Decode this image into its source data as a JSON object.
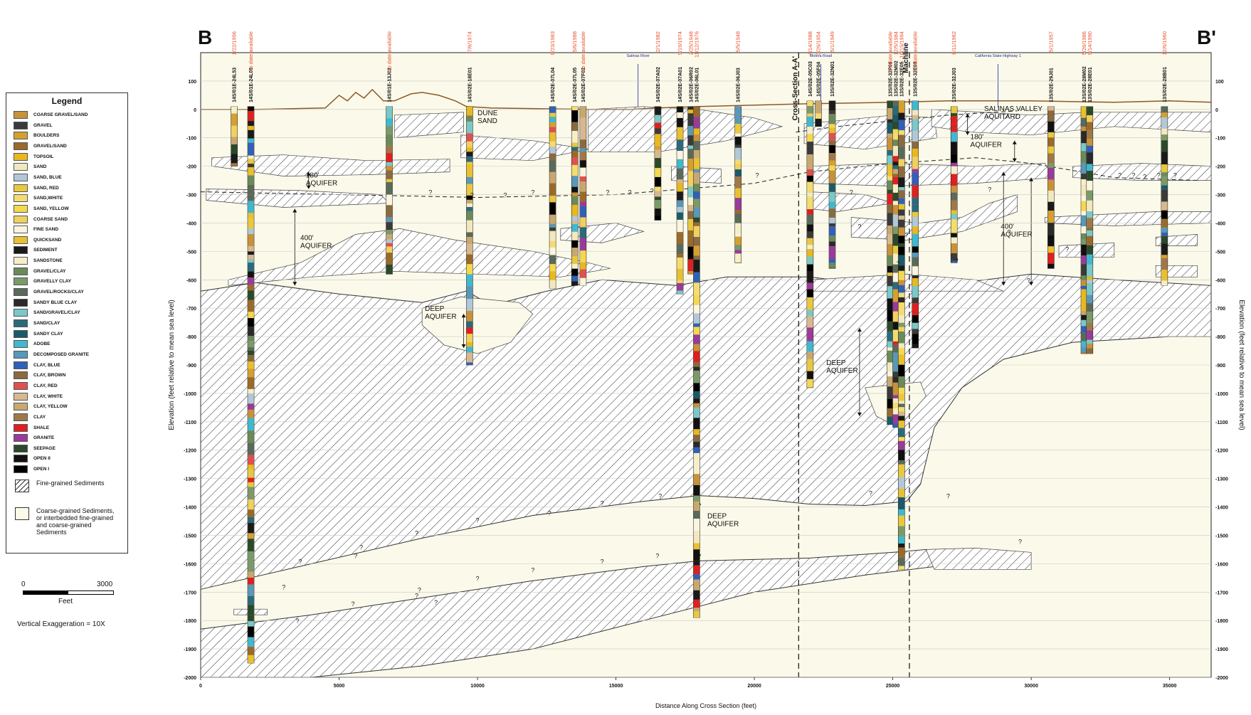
{
  "section": {
    "left_label": "B",
    "right_label": "B'"
  },
  "axes": {
    "y_label": "Elevation (feet relative to mean sea level)",
    "y_label_right": "Elevation (feet relative to mean sea level)",
    "x_label": "Distance Along Cross Section (feet)",
    "y_ticks": [
      "100",
      "0",
      "-100",
      "-200",
      "-300",
      "-400",
      "-500",
      "-600",
      "-700",
      "-800",
      "-900",
      "-1000",
      "-1100",
      "-1200",
      "-1300",
      "-1400",
      "-1500",
      "-1600",
      "-1700",
      "-1800",
      "-1900",
      "-2000"
    ],
    "y_values": [
      100,
      0,
      -100,
      -200,
      -300,
      -400,
      -500,
      -600,
      -700,
      -800,
      -900,
      -1000,
      -1100,
      -1200,
      -1300,
      -1400,
      -1500,
      -1600,
      -1700,
      -1800,
      -1900,
      -2000
    ],
    "x_ticks": [
      "0",
      "5000",
      "10000",
      "15000",
      "20000",
      "25000",
      "30000",
      "35000"
    ],
    "x_values": [
      0,
      5000,
      10000,
      15000,
      20000,
      25000,
      30000,
      35000
    ],
    "x_max": 36500,
    "y_min": -2000,
    "y_max": 200
  },
  "wells": [
    {
      "id": "14S/01E-24L53",
      "date": "1/22/1996",
      "x": 1200,
      "bottom": -200
    },
    {
      "id": "14S/01E-24L05",
      "date": "no date available",
      "x": 1800,
      "bottom": -1950
    },
    {
      "id": "14S/01E-13J02",
      "date": "no date available",
      "x": 6800,
      "bottom": -580
    },
    {
      "id": "14S/02E-18E01",
      "date": "7/6/1974",
      "x": 9700,
      "bottom": -900
    },
    {
      "id": "14S/02E-07L04",
      "date": "8/23/1983",
      "x": 12700,
      "bottom": -630
    },
    {
      "id": "14S/02E-07L05",
      "date": "5/6/1988",
      "x": 13500,
      "bottom": -620
    },
    {
      "id": "14S/02E-07F02",
      "date": "no date available",
      "x": 13800,
      "bottom": -620
    },
    {
      "id": "14S/02E-07A02",
      "date": "2/1/1982",
      "x": 16500,
      "bottom": -390
    },
    {
      "id": "14S/02E-07A01",
      "date": "9/19/1974",
      "x": 17300,
      "bottom": -650
    },
    {
      "id": "14S/02E-06R02",
      "date": "2/25/1948",
      "x": 17700,
      "bottom": -580
    },
    {
      "id": "14S/02E-06L01",
      "date": "11/12/1976",
      "x": 17900,
      "bottom": -1790
    },
    {
      "id": "14S/02E-06J03",
      "date": "5/5/1948",
      "x": 19400,
      "bottom": -540
    },
    {
      "id": "14S/02E-05C03",
      "date": "4/14/1988",
      "x": 22000,
      "bottom": -980
    },
    {
      "id": "14S/02E-05F04",
      "date": "3/26/1954",
      "x": 22300,
      "bottom": -60
    },
    {
      "id": "13S/02E-32N01",
      "date": "5/1/1949",
      "x": 22800,
      "bottom": -560
    },
    {
      "id": "13S/02E-32P01",
      "date": "no date available",
      "x": 24900,
      "bottom": -1110
    },
    {
      "id": "13S/02E-32M02",
      "date": "12/5/1984",
      "x": 25100,
      "bottom": -1120
    },
    {
      "id": "13S/02E-32E05",
      "date": "10/15/1994",
      "x": 25300,
      "bottom": -1620
    },
    {
      "id": "13S/02E-32E03",
      "date": "no date available",
      "x": 25800,
      "bottom": -840
    },
    {
      "id": "13S/02E-32J03",
      "date": "8/11/1962",
      "x": 27200,
      "bottom": -540
    },
    {
      "id": "13S/02E-29J01",
      "date": "5/1/1957",
      "x": 30700,
      "bottom": -560
    },
    {
      "id": "13S/02E-28M02",
      "date": "5/26/1986",
      "x": 31900,
      "bottom": -860
    },
    {
      "id": "13S/02E-28E01",
      "date": "9/14/1990",
      "x": 32100,
      "bottom": -860
    },
    {
      "id": "13S/02E-28B01",
      "date": "12/6/1960",
      "x": 34800,
      "bottom": -620
    }
  ],
  "features": [
    {
      "label": "Salinas River",
      "x": 15800
    },
    {
      "label": "Molera Road",
      "x": 22400
    },
    {
      "label": "California State Highway 1",
      "x": 28800
    }
  ],
  "cross_lines": [
    {
      "label": "Cross-Section A-A'",
      "x": 21600
    },
    {
      "label": "Machline",
      "x": 25600
    }
  ],
  "units": [
    {
      "label": "DUNE SAND",
      "x": 10000,
      "y": -20
    },
    {
      "label": "180' AQUIFER",
      "x": 3800,
      "y": -240
    },
    {
      "label": "400' AQUIFER",
      "x": 3600,
      "y": -460
    },
    {
      "label": "DEEP AQUIFER",
      "x": 8100,
      "y": -710
    },
    {
      "label": "DEEP AQUIFER",
      "x": 18300,
      "y": -1440
    },
    {
      "label": "DEEP AQUIFER",
      "x": 22600,
      "y": -900
    },
    {
      "label": "SALINAS VALLEY AQUITARD",
      "x": 28300,
      "y": -5
    },
    {
      "label": "180' AQUIFER",
      "x": 27800,
      "y": -105
    },
    {
      "label": "400' AQUIFER",
      "x": 28900,
      "y": -420
    }
  ],
  "legend": {
    "title": "Legend",
    "items": [
      {
        "label": "COARSE GRAVEL/SAND",
        "color": "#c8913a"
      },
      {
        "label": "GRAVEL",
        "color": "#3a3a3a"
      },
      {
        "label": "BOULDERS",
        "color": "#d6a030"
      },
      {
        "label": "GRAVEL/SAND",
        "color": "#9a6a2a"
      },
      {
        "label": "TOPSOIL",
        "color": "#e8b820"
      },
      {
        "label": "SAND",
        "color": "#f2e8c0"
      },
      {
        "label": "SAND, BLUE",
        "color": "#b0c8d8"
      },
      {
        "label": "SAND, RED",
        "color": "#e8c840"
      },
      {
        "label": "SAND,WHITE",
        "color": "#f4dc70"
      },
      {
        "label": "SAND, YELLOW",
        "color": "#f4d850"
      },
      {
        "label": "COARSE SAND",
        "color": "#f0d060"
      },
      {
        "label": "FINE SAND",
        "color": "#faf4e0"
      },
      {
        "label": "QUICKSAND",
        "color": "#e8c030"
      },
      {
        "label": "SEDIMENT",
        "color": "#1a1a1a"
      },
      {
        "label": "SANDSTONE",
        "color": "#f4efc8"
      },
      {
        "label": "GRAVEL/CLAY",
        "color": "#6a8a5a"
      },
      {
        "label": "GRAVELLY CLAY",
        "color": "#7a9a6a"
      },
      {
        "label": "GRAVEL/ROCKS/CLAY",
        "color": "#5a6a5a"
      },
      {
        "label": "SANDY BLUE CLAY",
        "color": "#2a2a2a"
      },
      {
        "label": "SAND/GRAVEL/CLAY",
        "color": "#7ac8c8"
      },
      {
        "label": "SAND/CLAY",
        "color": "#2a6a7a"
      },
      {
        "label": "SANDY CLAY",
        "color": "#1a5a6a"
      },
      {
        "label": "ADOBE",
        "color": "#40b8d0"
      },
      {
        "label": "DECOMPOSED GRANITE",
        "color": "#5898b8"
      },
      {
        "label": "CLAY, BLUE",
        "color": "#3060b8"
      },
      {
        "label": "CLAY, BROWN",
        "color": "#8a6a40"
      },
      {
        "label": "CLAY, RED",
        "color": "#e05050"
      },
      {
        "label": "CLAY, WHITE",
        "color": "#d8b890"
      },
      {
        "label": "CLAY, YELLOW",
        "color": "#c8a870"
      },
      {
        "label": "CLAY",
        "color": "#a07848"
      },
      {
        "label": "SHALE",
        "color": "#e02020"
      },
      {
        "label": "GRANITE",
        "color": "#9a3a9a"
      },
      {
        "label": "SEEPAGE",
        "color": "#2a4a2a"
      },
      {
        "label": "OPEN II",
        "color": "#111111"
      },
      {
        "label": "OPEN I",
        "color": "#000000"
      }
    ],
    "fine": "Fine-grained Sediments",
    "coarse": "Coarse-grained Sediments, or interbedded fine-grained and coarse-grained Sediments"
  },
  "scale": {
    "zero": "0",
    "max": "3000",
    "unit": "Feet",
    "exaggeration": "Vertical Exaggeration = 10X"
  },
  "colors": {
    "coarse_fill": "#fbf9e9",
    "hatch": "#333333",
    "date": "#e8502a",
    "feature": "#1a2aa0",
    "surface": "#8a5a2a"
  }
}
